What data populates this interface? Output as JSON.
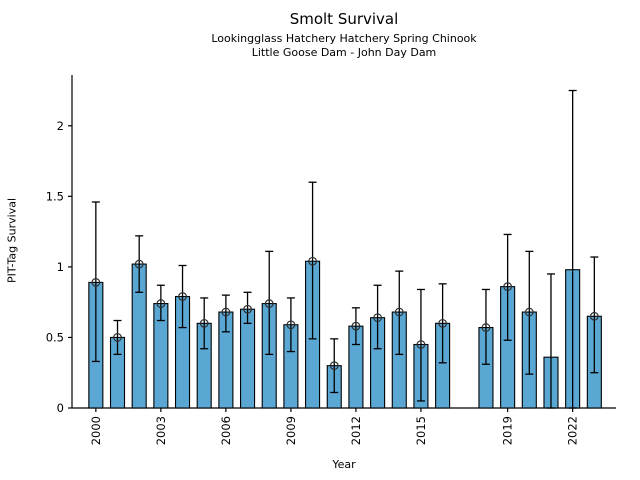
{
  "chart_data": {
    "type": "bar",
    "title": "Smolt Survival",
    "subtitle1": "Lookingglass Hatchery Hatchery Spring Chinook",
    "subtitle2": "Little Goose Dam - John Day Dam",
    "xlabel": "Year",
    "ylabel": "PIT-Tag Survival",
    "x_ticks": [
      2000,
      2003,
      2006,
      2009,
      2012,
      2015,
      2019,
      2022
    ],
    "y_ticks": [
      0,
      0.5,
      1,
      1.5,
      2
    ],
    "y_tick_labels": [
      "0",
      "0.5",
      "1",
      "1.5",
      "2"
    ],
    "xlim": [
      1998.9,
      2024.0
    ],
    "ylim": [
      0,
      2.36
    ],
    "grid": false,
    "legend": "none",
    "bar_color": "#5BA7D3",
    "edge_color": "#000000",
    "marker_color": "#2e2e2e",
    "marker_style": "open-circle",
    "points": [
      {
        "year": 2000,
        "value": 0.89,
        "err_lo": 0.33,
        "err_hi": 1.46,
        "marker": true
      },
      {
        "year": 2001,
        "value": 0.5,
        "err_lo": 0.38,
        "err_hi": 0.62,
        "marker": true
      },
      {
        "year": 2002,
        "value": 1.02,
        "err_lo": 0.82,
        "err_hi": 1.22,
        "marker": true
      },
      {
        "year": 2003,
        "value": 0.74,
        "err_lo": 0.62,
        "err_hi": 0.87,
        "marker": true
      },
      {
        "year": 2004,
        "value": 0.79,
        "err_lo": 0.57,
        "err_hi": 1.01,
        "marker": true
      },
      {
        "year": 2005,
        "value": 0.6,
        "err_lo": 0.42,
        "err_hi": 0.78,
        "marker": true
      },
      {
        "year": 2006,
        "value": 0.68,
        "err_lo": 0.54,
        "err_hi": 0.8,
        "marker": true
      },
      {
        "year": 2007,
        "value": 0.7,
        "err_lo": 0.6,
        "err_hi": 0.82,
        "marker": true
      },
      {
        "year": 2008,
        "value": 0.74,
        "err_lo": 0.38,
        "err_hi": 1.11,
        "marker": true
      },
      {
        "year": 2009,
        "value": 0.59,
        "err_lo": 0.4,
        "err_hi": 0.78,
        "marker": true
      },
      {
        "year": 2010,
        "value": 1.04,
        "err_lo": 0.49,
        "err_hi": 1.6,
        "marker": true
      },
      {
        "year": 2011,
        "value": 0.3,
        "err_lo": 0.11,
        "err_hi": 0.49,
        "marker": true
      },
      {
        "year": 2012,
        "value": 0.58,
        "err_lo": 0.45,
        "err_hi": 0.71,
        "marker": true
      },
      {
        "year": 2013,
        "value": 0.64,
        "err_lo": 0.42,
        "err_hi": 0.87,
        "marker": true
      },
      {
        "year": 2014,
        "value": 0.68,
        "err_lo": 0.38,
        "err_hi": 0.97,
        "marker": true
      },
      {
        "year": 2015,
        "value": 0.45,
        "err_lo": 0.05,
        "err_hi": 0.84,
        "marker": true
      },
      {
        "year": 2016,
        "value": 0.6,
        "err_lo": 0.32,
        "err_hi": 0.88,
        "marker": true
      },
      {
        "year": 2018,
        "value": 0.57,
        "err_lo": 0.31,
        "err_hi": 0.84,
        "marker": true
      },
      {
        "year": 2019,
        "value": 0.86,
        "err_lo": 0.48,
        "err_hi": 1.23,
        "marker": true
      },
      {
        "year": 2020,
        "value": 0.68,
        "err_lo": 0.24,
        "err_hi": 1.11,
        "marker": true
      },
      {
        "year": 2021,
        "value": 0.36,
        "err_lo": 0.0,
        "err_hi": 0.95,
        "marker": false
      },
      {
        "year": 2022,
        "value": 0.98,
        "err_lo": 0.0,
        "err_hi": 2.25,
        "marker": false
      },
      {
        "year": 2023,
        "value": 0.65,
        "err_lo": 0.25,
        "err_hi": 1.07,
        "marker": true
      }
    ]
  }
}
